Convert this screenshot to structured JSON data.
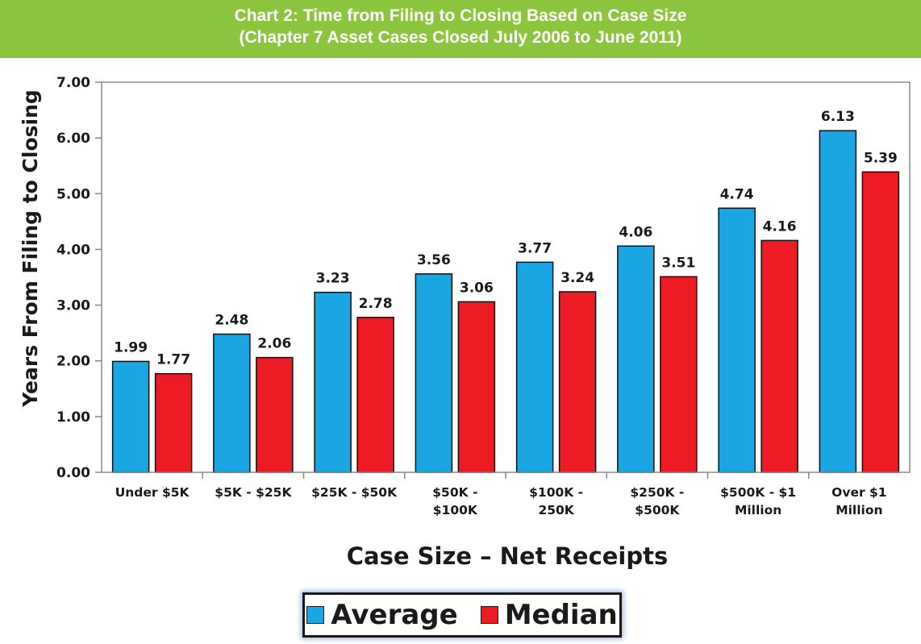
{
  "header": {
    "title_line1": "Chart 2: Time from Filing to Closing Based on Case Size",
    "title_line2": "(Chapter 7 Asset Cases Closed July 2006 to June 2011)"
  },
  "colors": {
    "banner": "#8cc63f",
    "average": "#1aa6e3",
    "median": "#ed1c24"
  },
  "chart_data": {
    "type": "bar",
    "title": "Chart 2: Time from Filing to Closing Based on Case Size (Chapter 7 Asset Cases Closed July 2006 to June 2011)",
    "xlabel": "Case Size – Net Receipts",
    "ylabel": "Years From Filing to Closing",
    "ylim": [
      0,
      7
    ],
    "yticks": [
      "0.00",
      "1.00",
      "2.00",
      "3.00",
      "4.00",
      "5.00",
      "6.00",
      "7.00"
    ],
    "categories": [
      [
        "Under $5K"
      ],
      [
        "$5K - $25K"
      ],
      [
        "$25K - $50K"
      ],
      [
        "$50K -",
        "$100K"
      ],
      [
        "$100K -",
        "250K"
      ],
      [
        "$250K -",
        "$500K"
      ],
      [
        "$500K - $1",
        "Million"
      ],
      [
        "Over $1",
        "Million"
      ]
    ],
    "series": [
      {
        "name": "Average",
        "color": "#1aa6e3",
        "values": [
          1.99,
          2.48,
          3.23,
          3.56,
          3.77,
          4.06,
          4.74,
          6.13
        ],
        "labels": [
          "1.99",
          "2.48",
          "3.23",
          "3.56",
          "3.77",
          "4.06",
          "4.74",
          "6.13"
        ]
      },
      {
        "name": "Median",
        "color": "#ed1c24",
        "values": [
          1.77,
          2.06,
          2.78,
          3.06,
          3.24,
          3.51,
          4.16,
          5.39
        ],
        "labels": [
          "1.77",
          "2.06",
          "2.78",
          "3.06",
          "3.24",
          "3.51",
          "4.16",
          "5.39"
        ]
      }
    ],
    "grid": false,
    "legend_position": "bottom"
  }
}
